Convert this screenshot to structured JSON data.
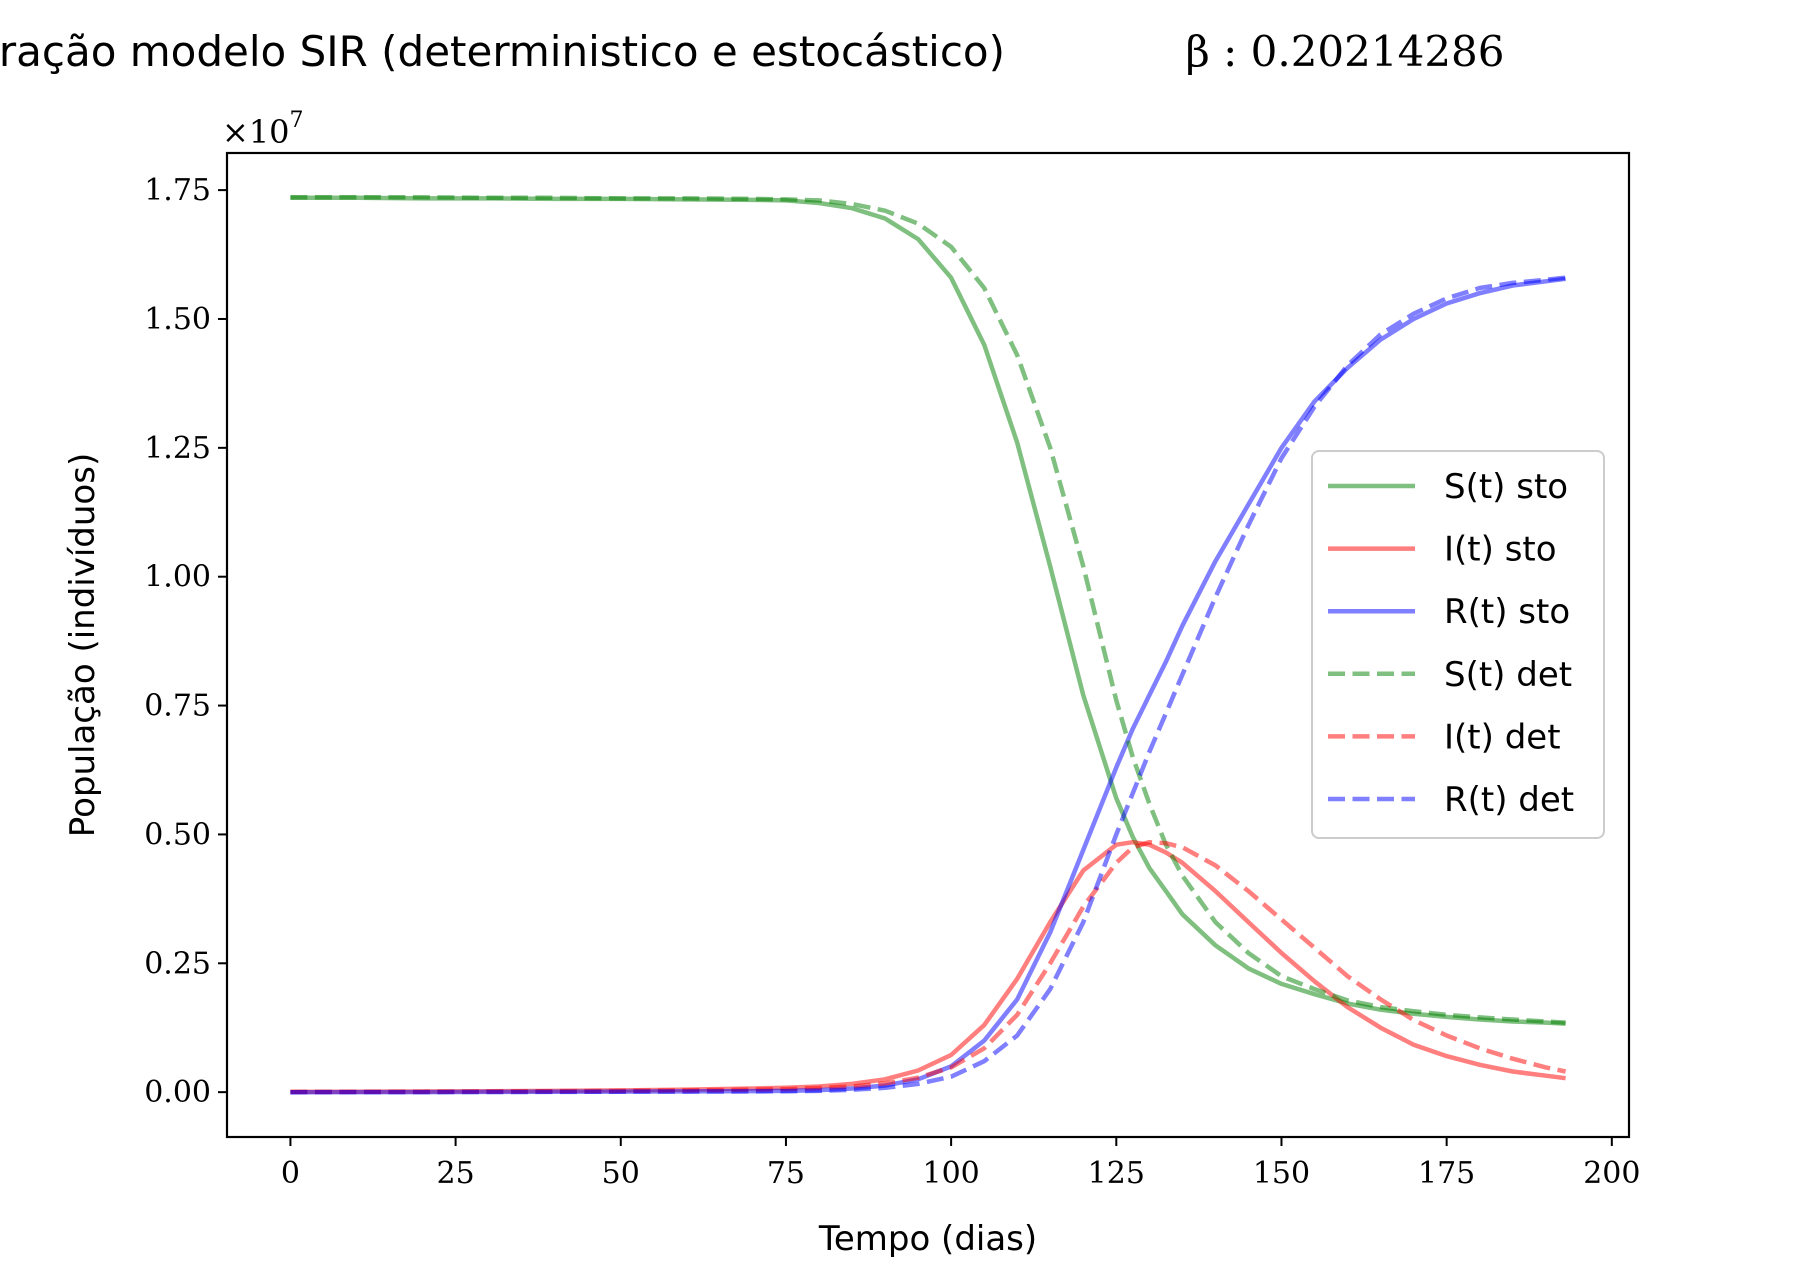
{
  "chart_data": {
    "type": "line",
    "title": "Comparação modelo SIR (deterministico e estocástico)",
    "title_math": "β : 0.20214286",
    "xlabel": "Tempo (dias)",
    "ylabel": "População (indivíduos)",
    "y_offset_text": "×10",
    "y_offset_exponent": "7",
    "xlim": [
      -9.6,
      202.6
    ],
    "ylim": [
      -0.087,
      1.822
    ],
    "x_ticks": [
      0,
      25,
      50,
      75,
      100,
      125,
      150,
      175,
      200
    ],
    "x_tick_labels": [
      "0",
      "25",
      "50",
      "75",
      "100",
      "125",
      "150",
      "175",
      "200"
    ],
    "y_ticks": [
      0.0,
      0.25,
      0.5,
      0.75,
      1.0,
      1.25,
      1.5,
      1.75
    ],
    "y_tick_labels": [
      "0.00",
      "0.25",
      "0.50",
      "0.75",
      "1.00",
      "1.25",
      "1.50",
      "1.75"
    ],
    "grid": false,
    "legend_position": "center-right",
    "x": [
      0,
      10,
      20,
      30,
      40,
      50,
      60,
      70,
      75,
      80,
      85,
      90,
      95,
      100,
      105,
      110,
      115,
      120,
      125,
      127.5,
      130,
      132.5,
      135,
      140,
      145,
      150,
      155,
      160,
      165,
      170,
      175,
      180,
      185,
      190,
      193
    ],
    "series": [
      {
        "name": "S(t) sto",
        "color": "#008000",
        "dash": "solid",
        "values": [
          1.735,
          1.735,
          1.734,
          1.734,
          1.733,
          1.733,
          1.732,
          1.731,
          1.73,
          1.725,
          1.715,
          1.695,
          1.655,
          1.58,
          1.45,
          1.26,
          1.02,
          0.77,
          0.57,
          0.495,
          0.435,
          0.39,
          0.345,
          0.285,
          0.24,
          0.21,
          0.19,
          0.172,
          0.16,
          0.152,
          0.146,
          0.141,
          0.137,
          0.135,
          0.133
        ]
      },
      {
        "name": "I(t) sto",
        "color": "#ff0000",
        "dash": "solid",
        "values": [
          0.0005,
          0.0008,
          0.0012,
          0.0017,
          0.0025,
          0.0035,
          0.005,
          0.007,
          0.0085,
          0.011,
          0.016,
          0.025,
          0.042,
          0.072,
          0.13,
          0.22,
          0.33,
          0.43,
          0.48,
          0.485,
          0.48,
          0.465,
          0.445,
          0.39,
          0.33,
          0.27,
          0.215,
          0.165,
          0.125,
          0.092,
          0.07,
          0.053,
          0.04,
          0.032,
          0.027
        ]
      },
      {
        "name": "R(t) sto",
        "color": "#0000ff",
        "dash": "solid",
        "values": [
          0.0,
          0.0001,
          0.0002,
          0.0004,
          0.0007,
          0.001,
          0.0015,
          0.002,
          0.0025,
          0.004,
          0.007,
          0.013,
          0.025,
          0.05,
          0.1,
          0.18,
          0.31,
          0.47,
          0.63,
          0.705,
          0.77,
          0.835,
          0.905,
          1.03,
          1.14,
          1.25,
          1.34,
          1.405,
          1.46,
          1.5,
          1.53,
          1.55,
          1.565,
          1.573,
          1.578
        ]
      },
      {
        "name": "S(t) det",
        "color": "#008000",
        "dash": "dashed",
        "values": [
          1.736,
          1.736,
          1.736,
          1.735,
          1.735,
          1.734,
          1.734,
          1.733,
          1.732,
          1.73,
          1.723,
          1.71,
          1.685,
          1.64,
          1.56,
          1.43,
          1.25,
          1.02,
          0.76,
          0.65,
          0.56,
          0.48,
          0.42,
          0.33,
          0.27,
          0.225,
          0.2,
          0.178,
          0.165,
          0.157,
          0.15,
          0.145,
          0.141,
          0.137,
          0.135
        ]
      },
      {
        "name": "I(t) det",
        "color": "#ff0000",
        "dash": "dashed",
        "values": [
          0.0004,
          0.0006,
          0.0009,
          0.0013,
          0.0018,
          0.0025,
          0.0035,
          0.005,
          0.006,
          0.008,
          0.011,
          0.017,
          0.028,
          0.048,
          0.085,
          0.15,
          0.25,
          0.36,
          0.445,
          0.475,
          0.485,
          0.483,
          0.475,
          0.44,
          0.39,
          0.335,
          0.28,
          0.225,
          0.18,
          0.14,
          0.11,
          0.085,
          0.065,
          0.048,
          0.04
        ]
      },
      {
        "name": "R(t) det",
        "color": "#0000ff",
        "dash": "dashed",
        "values": [
          0.0,
          0.0001,
          0.0002,
          0.0003,
          0.0005,
          0.0008,
          0.0011,
          0.0015,
          0.0018,
          0.0025,
          0.0045,
          0.0085,
          0.016,
          0.03,
          0.06,
          0.11,
          0.2,
          0.33,
          0.5,
          0.58,
          0.66,
          0.735,
          0.81,
          0.96,
          1.1,
          1.23,
          1.33,
          1.41,
          1.47,
          1.51,
          1.54,
          1.56,
          1.57,
          1.576,
          1.58
        ]
      }
    ]
  }
}
